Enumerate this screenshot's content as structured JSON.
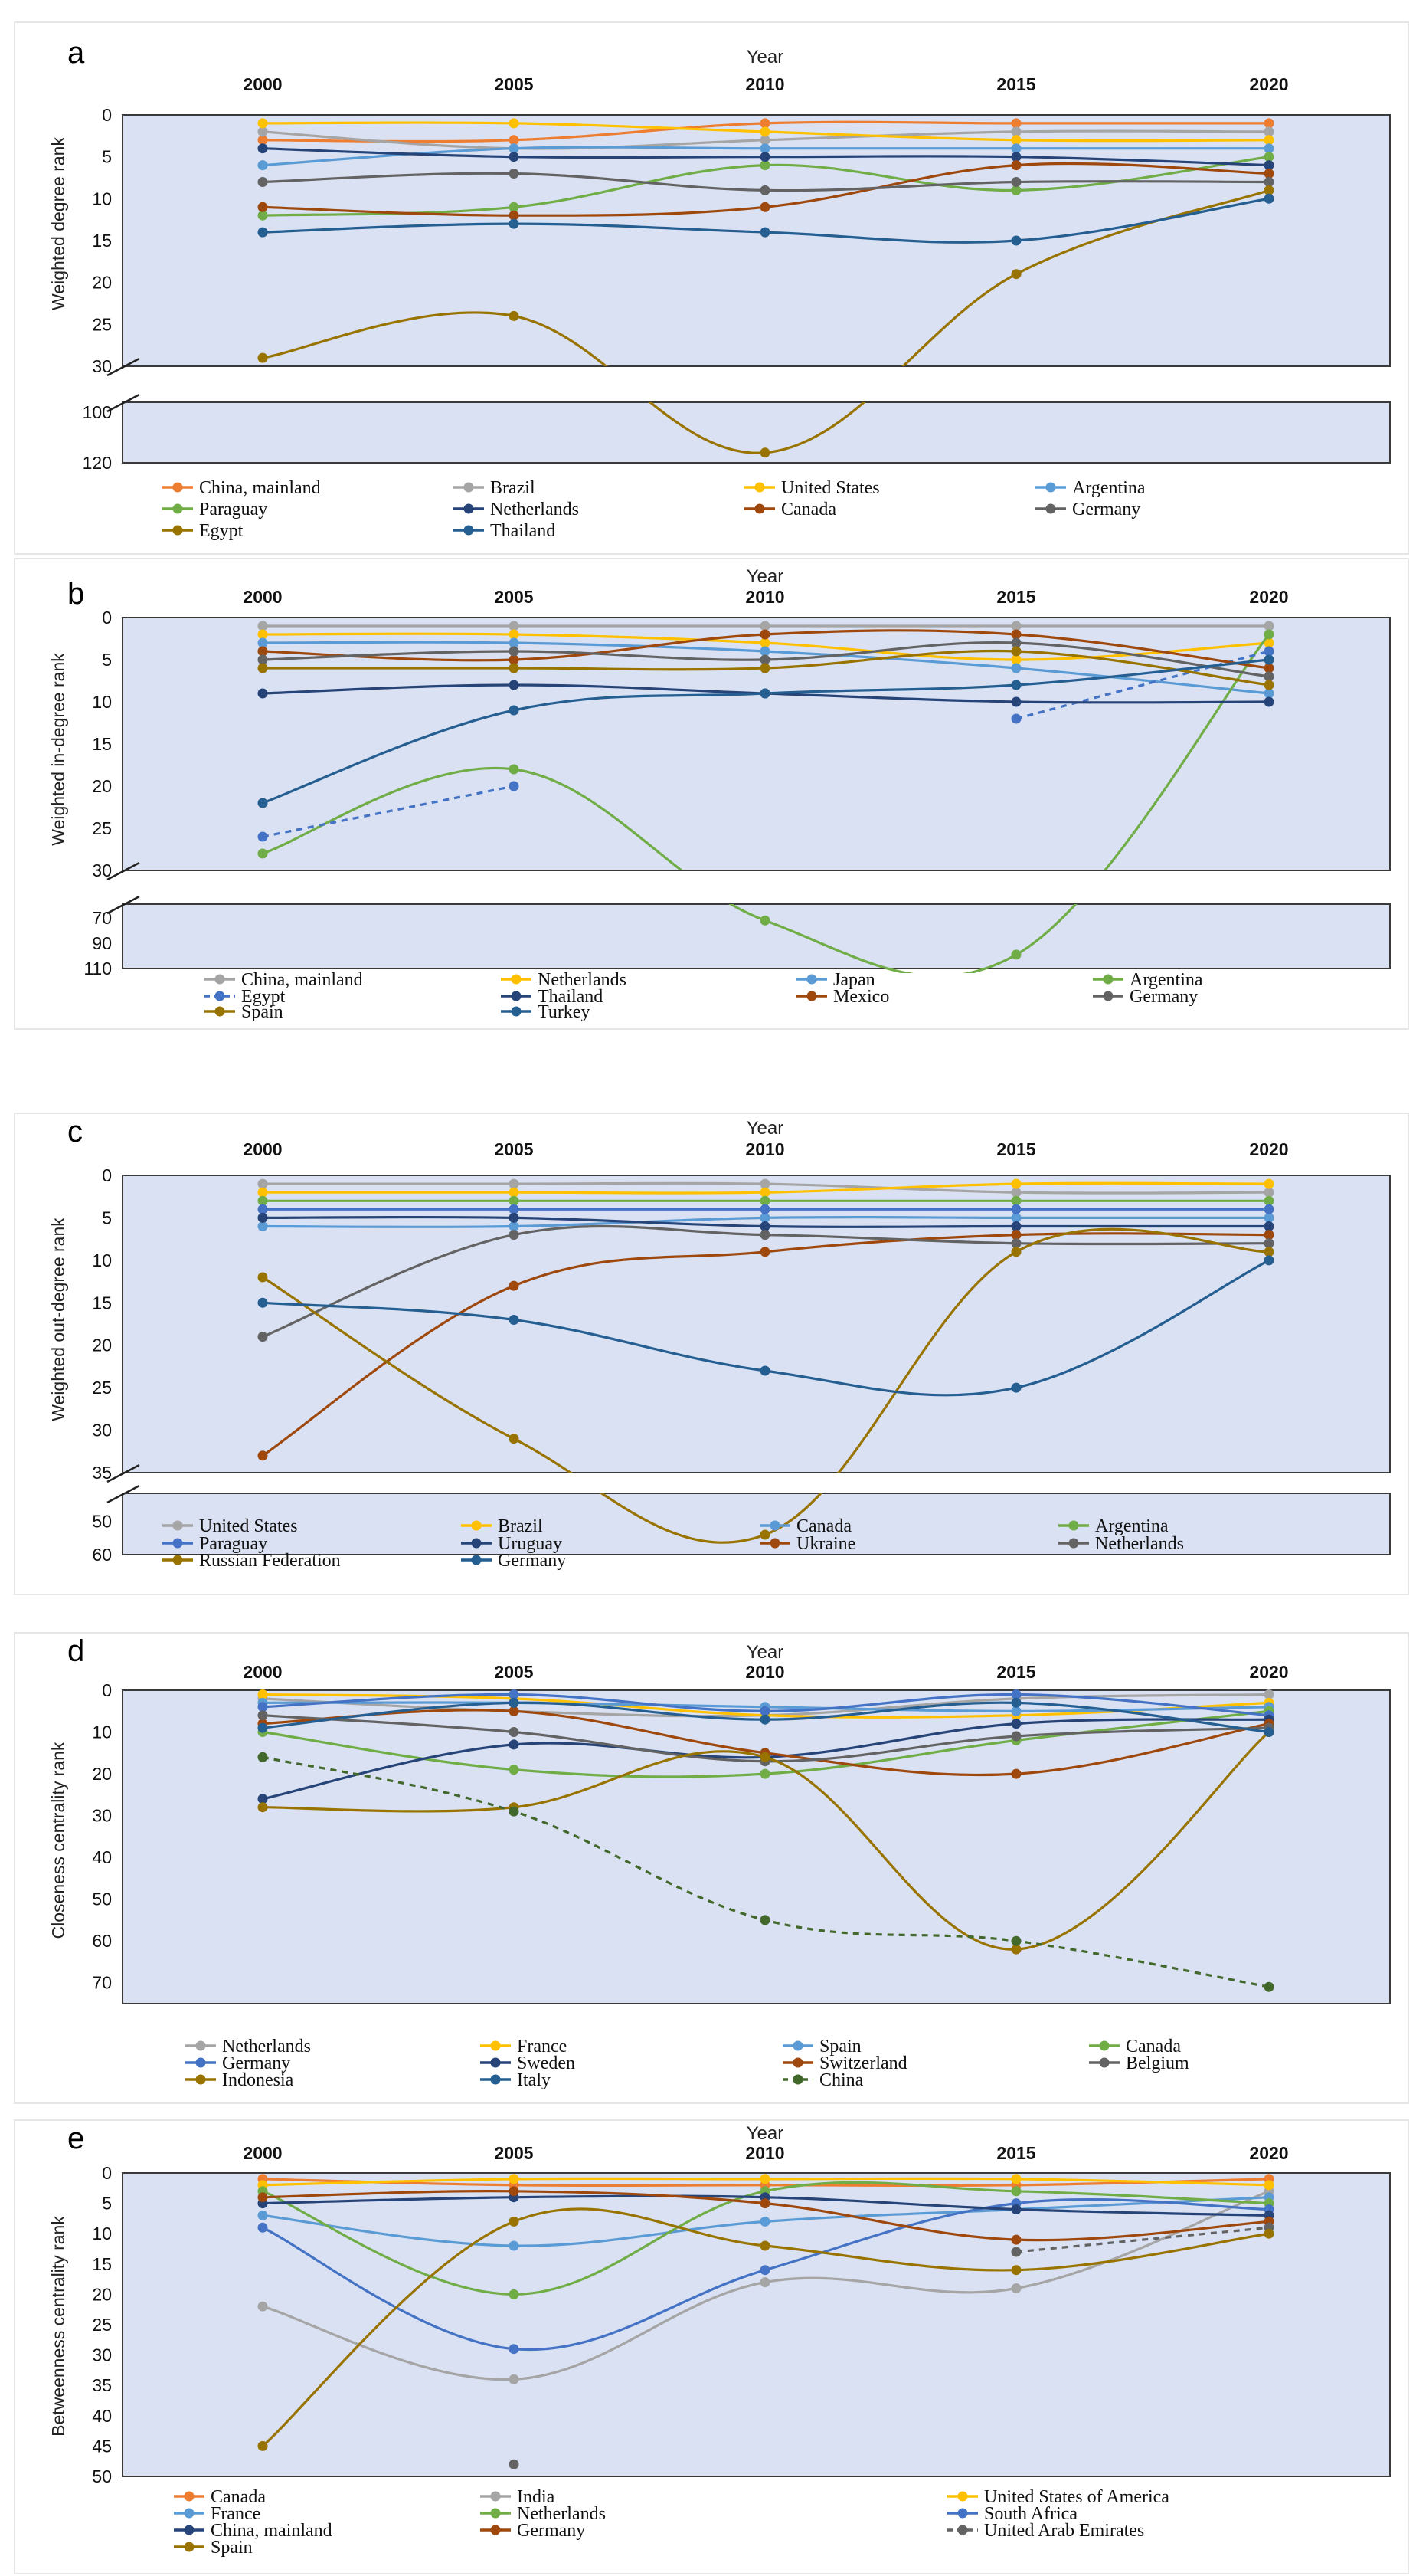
{
  "chart_data": [
    {
      "type": "line",
      "panel_label": "a",
      "xlabel": "Year",
      "ylabel": "Weighted degree rank",
      "categories": [
        "2000",
        "2005",
        "2010",
        "2015",
        "2020"
      ],
      "yticks_upper": [
        "0",
        "5",
        "10",
        "15",
        "20",
        "25",
        "30"
      ],
      "yticks_lower": [
        "100",
        "120"
      ],
      "axis_break": [
        30,
        95
      ],
      "ylim": [
        0,
        120
      ],
      "series": [
        {
          "name": "China, mainland",
          "color": "#ed7d31",
          "values": [
            3,
            3,
            1,
            1,
            1
          ]
        },
        {
          "name": "Brazil",
          "color": "#a5a5a5",
          "values": [
            2,
            4,
            3,
            2,
            2
          ]
        },
        {
          "name": "United States",
          "color": "#ffc000",
          "values": [
            1,
            1,
            2,
            3,
            3
          ]
        },
        {
          "name": "Argentina",
          "color": "#5b9bd5",
          "values": [
            6,
            4,
            4,
            4,
            4
          ]
        },
        {
          "name": "Paraguay",
          "color": "#70ad47",
          "values": [
            12,
            11,
            6,
            9,
            5
          ]
        },
        {
          "name": "Netherlands",
          "color": "#264478",
          "values": [
            4,
            5,
            5,
            5,
            6
          ]
        },
        {
          "name": "Canada",
          "color": "#9e480e",
          "values": [
            11,
            12,
            11,
            6,
            7
          ]
        },
        {
          "name": "Germany",
          "color": "#636363",
          "values": [
            8,
            7,
            9,
            8,
            8
          ]
        },
        {
          "name": "Egypt",
          "color": "#997300",
          "values": [
            29,
            24,
            116,
            19,
            9
          ]
        },
        {
          "name": "Thailand",
          "color": "#255e91",
          "values": [
            14,
            13,
            14,
            15,
            10
          ]
        }
      ]
    },
    {
      "type": "line",
      "panel_label": "b",
      "xlabel": "Year",
      "ylabel": "Weighted in-degree rank",
      "categories": [
        "2000",
        "2005",
        "2010",
        "2015",
        "2020"
      ],
      "yticks_upper": [
        "0",
        "5",
        "10",
        "15",
        "20",
        "25",
        "30"
      ],
      "yticks_lower": [
        "70",
        "90",
        "110"
      ],
      "axis_break": [
        30,
        60
      ],
      "ylim": [
        0,
        110
      ],
      "series": [
        {
          "name": "China, mainland",
          "color": "#a5a5a5",
          "values": [
            1,
            1,
            1,
            1,
            1
          ]
        },
        {
          "name": "Netherlands",
          "color": "#ffc000",
          "values": [
            2,
            2,
            3,
            5,
            3
          ]
        },
        {
          "name": "Japan",
          "color": "#5b9bd5",
          "values": [
            3,
            3,
            4,
            6,
            9
          ]
        },
        {
          "name": "Argentina",
          "color": "#70ad47",
          "values": [
            28,
            18,
            72,
            99,
            2
          ]
        },
        {
          "name": "Egypt",
          "color": "#4472c4",
          "dashed": true,
          "values": [
            26,
            20,
            null,
            12,
            4
          ]
        },
        {
          "name": "Thailand",
          "color": "#264478",
          "values": [
            9,
            8,
            9,
            10,
            10
          ]
        },
        {
          "name": "Mexico",
          "color": "#9e480e",
          "values": [
            4,
            5,
            2,
            2,
            6
          ]
        },
        {
          "name": "Germany",
          "color": "#636363",
          "values": [
            5,
            4,
            5,
            3,
            7
          ]
        },
        {
          "name": "Spain",
          "color": "#997300",
          "values": [
            6,
            6,
            6,
            4,
            8
          ]
        },
        {
          "name": "Turkey",
          "color": "#255e91",
          "values": [
            22,
            11,
            9,
            8,
            5
          ]
        }
      ]
    },
    {
      "type": "line",
      "panel_label": "c",
      "xlabel": "Year",
      "ylabel": "Weighted out-degree rank",
      "categories": [
        "2000",
        "2005",
        "2010",
        "2015",
        "2020"
      ],
      "yticks_upper": [
        "0",
        "5",
        "10",
        "15",
        "20",
        "25",
        "30",
        "35"
      ],
      "yticks_lower": [
        "50",
        "60"
      ],
      "axis_break": [
        35,
        42
      ],
      "ylim": [
        0,
        60
      ],
      "series": [
        {
          "name": "United States",
          "color": "#a5a5a5",
          "values": [
            1,
            1,
            1,
            2,
            2
          ]
        },
        {
          "name": "Brazil",
          "color": "#ffc000",
          "values": [
            2,
            2,
            2,
            1,
            1
          ]
        },
        {
          "name": "Canada",
          "color": "#5b9bd5",
          "values": [
            6,
            6,
            5,
            5,
            5
          ]
        },
        {
          "name": "Argentina",
          "color": "#70ad47",
          "values": [
            3,
            3,
            3,
            3,
            3
          ]
        },
        {
          "name": "Paraguay",
          "color": "#4472c4",
          "values": [
            4,
            4,
            4,
            4,
            4
          ]
        },
        {
          "name": "Uruguay",
          "color": "#264478",
          "values": [
            5,
            5,
            6,
            6,
            6
          ]
        },
        {
          "name": "Ukraine",
          "color": "#9e480e",
          "values": [
            33,
            13,
            9,
            7,
            7
          ]
        },
        {
          "name": "Netherlands",
          "color": "#636363",
          "values": [
            19,
            7,
            7,
            8,
            8
          ]
        },
        {
          "name": "Russian Federation",
          "color": "#997300",
          "values": [
            12,
            31,
            54,
            9,
            9
          ]
        },
        {
          "name": "Germany",
          "color": "#255e91",
          "values": [
            15,
            17,
            23,
            25,
            10
          ]
        }
      ]
    },
    {
      "type": "line",
      "panel_label": "d",
      "xlabel": "Year",
      "ylabel": "Closeness centrality rank",
      "categories": [
        "2000",
        "2005",
        "2010",
        "2015",
        "2020"
      ],
      "yticks": [
        "0",
        "10",
        "20",
        "30",
        "40",
        "50",
        "60",
        "70"
      ],
      "ylim": [
        0,
        75
      ],
      "series": [
        {
          "name": "Netherlands",
          "color": "#a5a5a5",
          "values": [
            2,
            5,
            6,
            2,
            1
          ]
        },
        {
          "name": "France",
          "color": "#ffc000",
          "values": [
            1,
            2,
            6,
            6,
            3
          ]
        },
        {
          "name": "Spain",
          "color": "#5b9bd5",
          "values": [
            3,
            3,
            4,
            5,
            4
          ]
        },
        {
          "name": "Canada",
          "color": "#70ad47",
          "values": [
            10,
            19,
            20,
            12,
            5
          ]
        },
        {
          "name": "Germany",
          "color": "#4472c4",
          "values": [
            4,
            1,
            5,
            1,
            6
          ]
        },
        {
          "name": "Sweden",
          "color": "#264478",
          "values": [
            26,
            13,
            16,
            8,
            7
          ]
        },
        {
          "name": "Switzerland",
          "color": "#9e480e",
          "values": [
            8,
            5,
            15,
            20,
            8
          ]
        },
        {
          "name": "Belgium",
          "color": "#636363",
          "values": [
            6,
            10,
            17,
            11,
            9
          ]
        },
        {
          "name": "Indonesia",
          "color": "#997300",
          "values": [
            28,
            28,
            16,
            62,
            10
          ]
        },
        {
          "name": "Italy",
          "color": "#255e91",
          "values": [
            9,
            3,
            7,
            3,
            10
          ]
        },
        {
          "name": "China",
          "color": "#43682b",
          "dashed": true,
          "values": [
            16,
            29,
            55,
            60,
            71
          ]
        }
      ]
    },
    {
      "type": "line",
      "panel_label": "e",
      "xlabel": "Year",
      "ylabel": "Betweenness centrality rank",
      "categories": [
        "2000",
        "2005",
        "2010",
        "2015",
        "2020"
      ],
      "yticks": [
        "0",
        "5",
        "10",
        "15",
        "20",
        "25",
        "30",
        "35",
        "40",
        "45",
        "50"
      ],
      "ylim": [
        0,
        50
      ],
      "series": [
        {
          "name": "Canada",
          "color": "#ed7d31",
          "values": [
            1,
            2,
            2,
            2,
            1
          ]
        },
        {
          "name": "India",
          "color": "#a5a5a5",
          "values": [
            22,
            34,
            18,
            19,
            3
          ]
        },
        {
          "name": "United States of America",
          "color": "#ffc000",
          "values": [
            2,
            1,
            1,
            1,
            2
          ]
        },
        {
          "name": "France",
          "color": "#5b9bd5",
          "values": [
            7,
            12,
            8,
            6,
            4
          ]
        },
        {
          "name": "Netherlands",
          "color": "#70ad47",
          "values": [
            3,
            20,
            3,
            3,
            5
          ]
        },
        {
          "name": "South Africa",
          "color": "#4472c4",
          "values": [
            9,
            29,
            16,
            5,
            6
          ]
        },
        {
          "name": "China, mainland",
          "color": "#264478",
          "values": [
            5,
            4,
            4,
            6,
            7
          ]
        },
        {
          "name": "Germany",
          "color": "#9e480e",
          "values": [
            4,
            3,
            5,
            11,
            8
          ]
        },
        {
          "name": "United Arab Emirates",
          "color": "#636363",
          "dashed": true,
          "values": [
            null,
            48,
            null,
            13,
            9
          ]
        },
        {
          "name": "Spain",
          "color": "#997300",
          "values": [
            45,
            8,
            12,
            16,
            10
          ]
        }
      ]
    }
  ]
}
